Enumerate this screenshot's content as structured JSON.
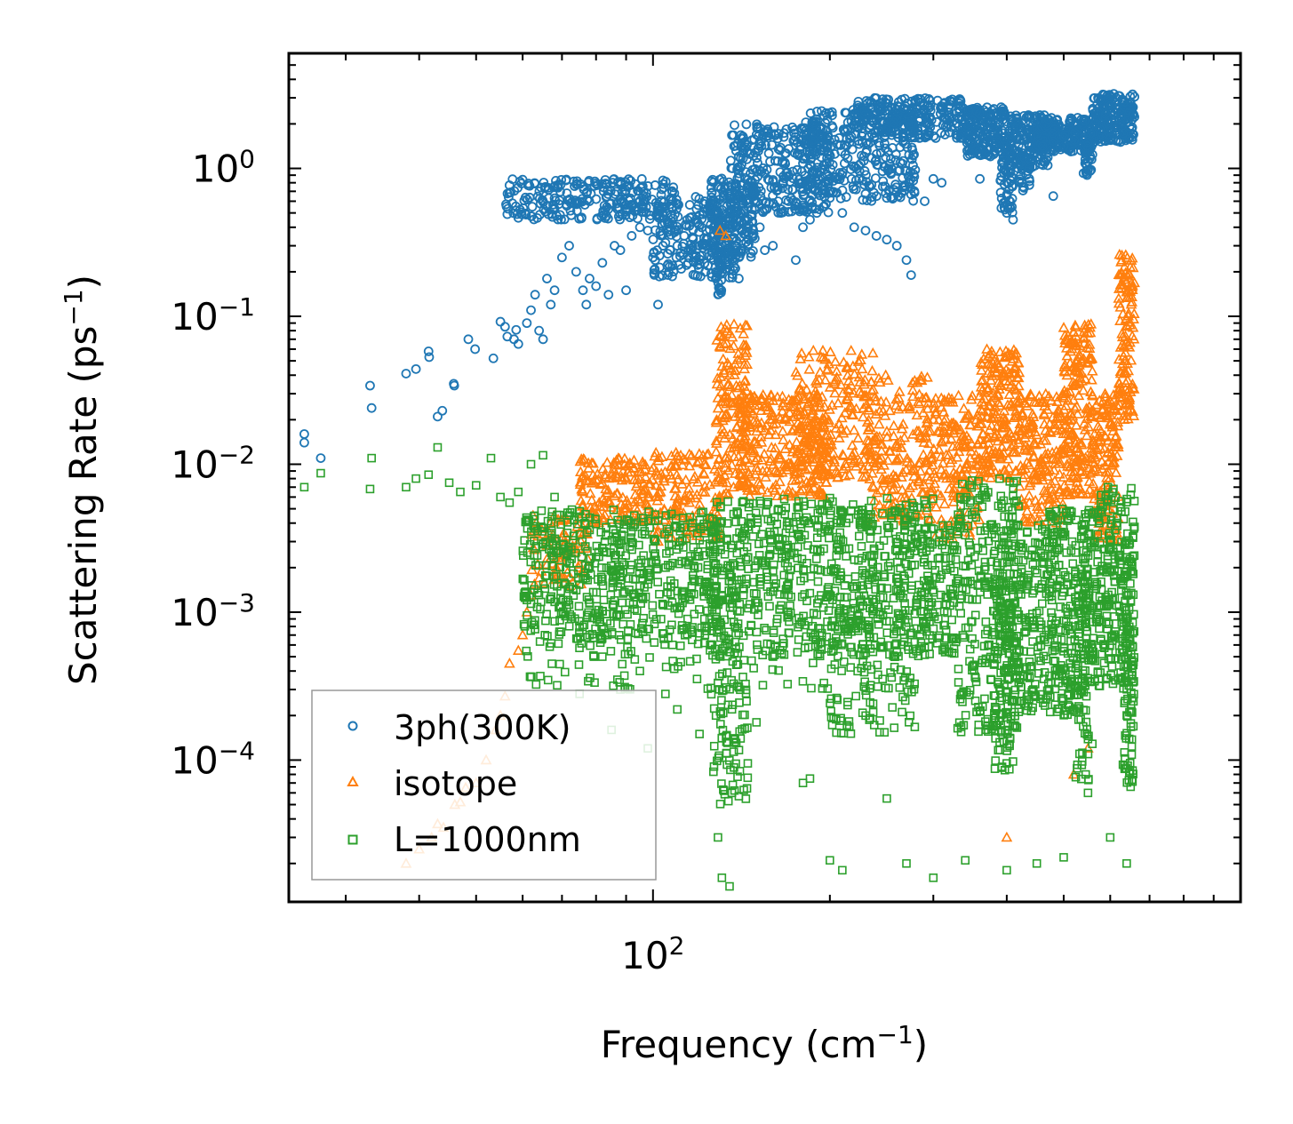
{
  "chart_data": {
    "type": "scatter",
    "title": "",
    "xscale": "log",
    "yscale": "log",
    "xlim": [
      24,
      1000
    ],
    "ylim": [
      1.1e-05,
      6
    ],
    "xlabel": "Frequency (cm",
    "xlabel_sup": "−1",
    "xlabel_tail": ")",
    "ylabel": "Scattering Rate (ps",
    "ylabel_sup": "−1",
    "ylabel_tail": ")",
    "x_major_ticks": [
      {
        "value": 100,
        "base": "10",
        "exp": "2"
      }
    ],
    "y_major_ticks": [
      {
        "value": 1,
        "base": "10",
        "exp": "0"
      },
      {
        "value": 0.1,
        "base": "10",
        "exp": "−1"
      },
      {
        "value": 0.01,
        "base": "10",
        "exp": "−2"
      },
      {
        "value": 0.001,
        "base": "10",
        "exp": "−3"
      },
      {
        "value": 0.0001,
        "base": "10",
        "exp": "−4"
      }
    ],
    "legend_position": "lower-left",
    "series": [
      {
        "name": "3ph(300K)",
        "marker": "circle",
        "color": "#1f77b4",
        "points": [
          [
            25.5,
            0.016
          ],
          [
            25.5,
            0.014
          ],
          [
            27.2,
            0.011
          ],
          [
            33,
            0.034
          ],
          [
            33.2,
            0.024
          ],
          [
            38,
            0.041
          ],
          [
            39.5,
            0.044
          ],
          [
            41.5,
            0.058
          ],
          [
            41.6,
            0.053
          ],
          [
            43,
            0.021
          ],
          [
            43.8,
            0.023
          ],
          [
            45.8,
            0.035
          ],
          [
            45.9,
            0.034
          ],
          [
            48.5,
            0.07
          ],
          [
            49.8,
            0.06
          ],
          [
            53.5,
            0.052
          ],
          [
            55,
            0.092
          ],
          [
            56,
            0.085
          ],
          [
            56.5,
            0.073
          ],
          [
            58,
            0.07
          ],
          [
            58.5,
            0.081
          ],
          [
            59,
            0.065
          ],
          [
            61,
            0.09
          ],
          [
            62,
            0.11
          ],
          [
            63,
            0.14
          ],
          [
            64,
            0.08
          ],
          [
            65,
            0.07
          ],
          [
            66,
            0.18
          ],
          [
            67,
            0.12
          ],
          [
            68,
            0.15
          ],
          [
            70,
            0.25
          ],
          [
            72,
            0.3
          ],
          [
            74,
            0.2
          ],
          [
            76,
            0.15
          ],
          [
            77,
            0.12
          ],
          [
            78,
            0.18
          ],
          [
            80,
            0.16
          ],
          [
            82,
            0.23
          ],
          [
            84,
            0.14
          ],
          [
            86,
            0.3
          ],
          [
            88,
            0.28
          ],
          [
            90,
            0.15
          ],
          [
            92,
            0.35
          ],
          [
            95,
            0.4
          ],
          [
            98,
            0.38
          ],
          [
            100,
            0.25
          ],
          [
            102,
            0.12
          ],
          [
            104,
            0.3
          ],
          [
            108,
            0.22
          ],
          [
            110,
            0.3
          ],
          [
            113,
            0.35
          ],
          [
            116,
            0.28
          ],
          [
            120,
            0.3
          ],
          [
            124,
            0.22
          ],
          [
            126,
            0.32
          ],
          [
            128,
            0.2
          ],
          [
            130,
            0.15
          ],
          [
            131,
            0.2
          ],
          [
            133,
            0.28
          ],
          [
            135,
            0.25
          ],
          [
            138,
            0.25
          ],
          [
            140,
            0.18
          ],
          [
            142,
            0.38
          ],
          [
            145,
            0.3
          ],
          [
            148,
            0.35
          ],
          [
            152,
            0.4
          ],
          [
            155,
            0.28
          ],
          [
            160,
            0.3
          ],
          [
            165,
            0.5
          ],
          [
            170,
            0.6
          ],
          [
            175,
            0.24
          ],
          [
            180,
            0.4
          ],
          [
            185,
            0.45
          ],
          [
            190,
            0.5
          ],
          [
            195,
            0.55
          ],
          [
            200,
            0.7
          ],
          [
            210,
            0.5
          ],
          [
            220,
            0.4
          ],
          [
            230,
            0.38
          ],
          [
            240,
            0.35
          ],
          [
            250,
            0.33
          ],
          [
            260,
            0.3
          ],
          [
            270,
            0.24
          ],
          [
            275,
            0.19
          ],
          [
            290,
            0.6
          ],
          [
            300,
            0.85
          ],
          [
            310,
            0.8
          ],
          [
            330,
            2.2
          ],
          [
            360,
            0.85
          ],
          [
            370,
            1.7
          ],
          [
            400,
            0.5
          ],
          [
            410,
            0.45
          ],
          [
            450,
            1.2
          ],
          [
            480,
            0.65
          ],
          [
            500,
            1.4
          ],
          [
            550,
            1.5
          ],
          [
            600,
            1.6
          ],
          [
            620,
            3.1
          ],
          [
            650,
            2.8
          ]
        ],
        "bands": [
          [
            56,
            110,
            0.45,
            0.85,
            260
          ],
          [
            100,
            140,
            0.18,
            0.65,
            220
          ],
          [
            125,
            150,
            0.25,
            0.9,
            160
          ],
          [
            135,
            200,
            0.5,
            2.0,
            300
          ],
          [
            180,
            280,
            0.6,
            2.5,
            320
          ],
          [
            220,
            340,
            1.6,
            3.0,
            240
          ],
          [
            340,
            400,
            1.2,
            2.6,
            180
          ],
          [
            400,
            470,
            1.0,
            2.3,
            160
          ],
          [
            450,
            560,
            1.3,
            2.2,
            220
          ],
          [
            560,
            660,
            1.5,
            3.2,
            200
          ],
          [
            390,
            410,
            0.5,
            1.5,
            60
          ],
          [
            129,
            131,
            0.14,
            0.5,
            40
          ],
          [
            420,
            440,
            0.7,
            1.2,
            30
          ],
          [
            540,
            560,
            0.9,
            1.8,
            30
          ]
        ]
      },
      {
        "name": "isotope",
        "marker": "triangle",
        "color": "#ff7f0e",
        "points": [
          [
            38,
            2e-05
          ],
          [
            40,
            2.5e-05
          ],
          [
            42,
            3e-05
          ],
          [
            43,
            3.7e-05
          ],
          [
            44,
            3.5e-05
          ],
          [
            46,
            5e-05
          ],
          [
            47,
            5.2e-05
          ],
          [
            48,
            6.5e-05
          ],
          [
            50,
            7e-05
          ],
          [
            52,
            0.0001
          ],
          [
            54,
            0.00016
          ],
          [
            55,
            0.0002
          ],
          [
            56,
            0.00027
          ],
          [
            57,
            0.00045
          ],
          [
            59,
            0.00055
          ],
          [
            60,
            0.0007
          ],
          [
            61,
            0.001
          ],
          [
            62,
            0.0013
          ],
          [
            64,
            0.0017
          ],
          [
            66,
            0.0021
          ],
          [
            69,
            0.0025
          ],
          [
            71,
            0.003
          ],
          [
            73,
            0.0028
          ],
          [
            133,
            0.35
          ],
          [
            130,
            0.38
          ],
          [
            400,
            3e-05
          ],
          [
            550,
            0.00012
          ],
          [
            520,
            8e-05
          ]
        ],
        "faint_points": [
          [
            38,
            2e-05
          ],
          [
            40,
            2.5e-05
          ],
          [
            42,
            3e-05
          ],
          [
            43,
            3.7e-05
          ],
          [
            44,
            3.5e-05
          ],
          [
            46,
            5e-05
          ],
          [
            47,
            5.2e-05
          ],
          [
            48,
            6.5e-05
          ],
          [
            52,
            0.0001
          ],
          [
            54,
            0.00016
          ],
          [
            55,
            0.0002
          ]
        ],
        "bands": [
          [
            62,
            78,
            0.0015,
            0.0045,
            80
          ],
          [
            75,
            100,
            0.004,
            0.011,
            160
          ],
          [
            100,
            130,
            0.003,
            0.012,
            150
          ],
          [
            128,
            145,
            0.006,
            0.09,
            160
          ],
          [
            140,
            200,
            0.006,
            0.03,
            260
          ],
          [
            175,
            240,
            0.008,
            0.06,
            220
          ],
          [
            230,
            300,
            0.004,
            0.04,
            200
          ],
          [
            300,
            360,
            0.003,
            0.03,
            160
          ],
          [
            360,
            420,
            0.008,
            0.06,
            200
          ],
          [
            420,
            500,
            0.004,
            0.03,
            180
          ],
          [
            500,
            560,
            0.006,
            0.09,
            200
          ],
          [
            560,
            620,
            0.003,
            0.03,
            140
          ],
          [
            620,
            660,
            0.02,
            0.27,
            120
          ]
        ]
      },
      {
        "name": "L=1000nm",
        "marker": "square",
        "color": "#2ca02c",
        "points": [
          [
            25.5,
            0.007
          ],
          [
            27.2,
            0.0087
          ],
          [
            33,
            0.0068
          ],
          [
            33.2,
            0.011
          ],
          [
            38,
            0.007
          ],
          [
            39.5,
            0.008
          ],
          [
            41.5,
            0.0085
          ],
          [
            43,
            0.013
          ],
          [
            45,
            0.0075
          ],
          [
            47,
            0.0065
          ],
          [
            50,
            0.0072
          ],
          [
            53,
            0.011
          ],
          [
            55,
            0.006
          ],
          [
            57,
            0.0055
          ],
          [
            59,
            0.0065
          ],
          [
            62,
            0.01
          ],
          [
            65,
            0.0115
          ],
          [
            68,
            0.006
          ],
          [
            72,
            0.0045
          ],
          [
            75,
            0.00028
          ],
          [
            78,
            0.0007
          ],
          [
            82,
            0.0005
          ],
          [
            85,
            0.00016
          ],
          [
            88,
            0.0003
          ],
          [
            95,
            0.0004
          ],
          [
            98,
            0.00012
          ],
          [
            105,
            0.00028
          ],
          [
            110,
            0.00022
          ],
          [
            120,
            0.00015
          ],
          [
            128,
            0.0002
          ],
          [
            129,
            3e-05
          ],
          [
            131,
            1.6e-05
          ],
          [
            135,
            1.4e-05
          ],
          [
            140,
            5.7e-05
          ],
          [
            145,
            9.5e-05
          ],
          [
            150,
            0.00018
          ],
          [
            180,
            7e-05
          ],
          [
            185,
            7.5e-05
          ],
          [
            200,
            2.1e-05
          ],
          [
            210,
            1.8e-05
          ],
          [
            250,
            5.5e-05
          ],
          [
            270,
            2e-05
          ],
          [
            300,
            1.6e-05
          ],
          [
            340,
            2.1e-05
          ],
          [
            400,
            1.8e-05
          ],
          [
            450,
            2e-05
          ],
          [
            500,
            2.2e-05
          ],
          [
            550,
            6e-05
          ],
          [
            600,
            3e-05
          ],
          [
            640,
            2e-05
          ],
          [
            650,
            6.6e-05
          ],
          [
            655,
            8.5e-05
          ]
        ],
        "bands": [
          [
            60,
            130,
            0.0006,
            0.005,
            420
          ],
          [
            60,
            200,
            0.0003,
            0.005,
            300
          ],
          [
            125,
            300,
            0.0005,
            0.006,
            520
          ],
          [
            125,
            145,
            5e-05,
            0.002,
            120
          ],
          [
            200,
            280,
            0.00015,
            0.005,
            220
          ],
          [
            280,
            330,
            0.0005,
            0.004,
            120
          ],
          [
            330,
            420,
            0.00015,
            0.008,
            300
          ],
          [
            380,
            410,
            8e-05,
            0.003,
            110
          ],
          [
            410,
            470,
            0.0002,
            0.004,
            160
          ],
          [
            470,
            560,
            0.0002,
            0.005,
            260
          ],
          [
            520,
            560,
            7e-05,
            0.002,
            80
          ],
          [
            560,
            660,
            0.0003,
            0.007,
            230
          ],
          [
            630,
            660,
            7e-05,
            0.003,
            90
          ]
        ]
      }
    ]
  }
}
